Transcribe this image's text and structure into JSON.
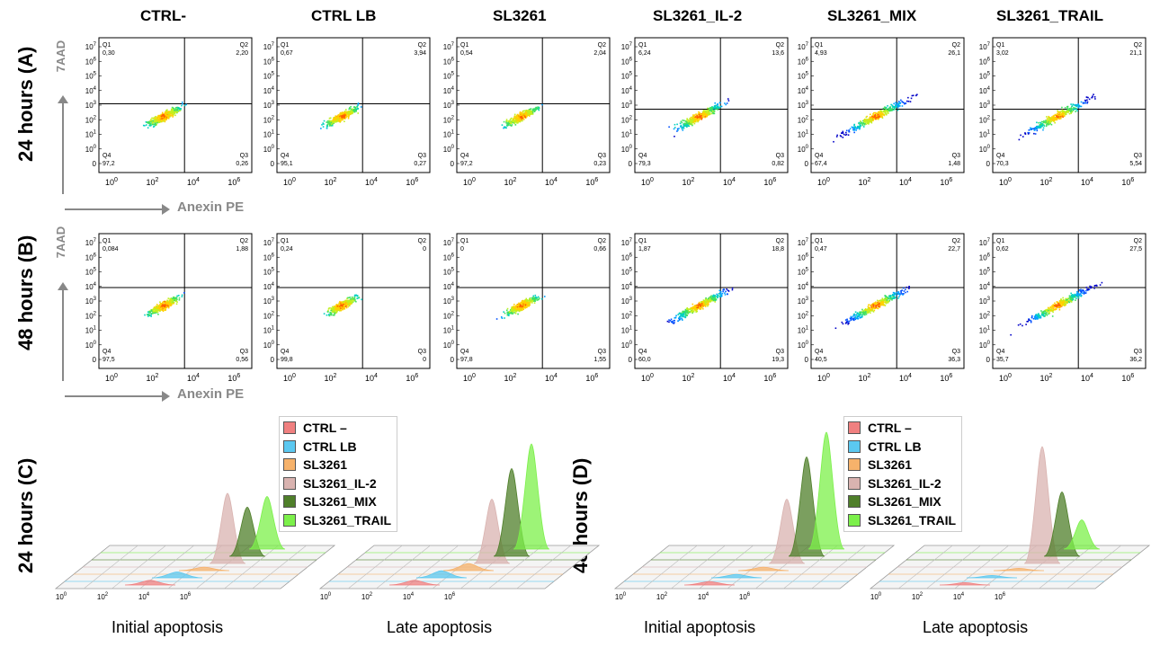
{
  "columns": [
    "CTRL-",
    "CTRL LB",
    "SL3261",
    "SL3261_IL-2",
    "SL3261_MIX",
    "SL3261_TRAIL"
  ],
  "row_labels": [
    "24 hours (A)",
    "48 hours (B)",
    "24 hours (C)",
    "48 hours (D)"
  ],
  "axis": {
    "y": "7AAD",
    "x": "Anexin PE"
  },
  "tick_labels": [
    "0",
    "10",
    "10",
    "10",
    "10",
    "10",
    "10",
    "10",
    "10"
  ],
  "tick_exponents": [
    "",
    "0",
    "1",
    "2",
    "3",
    "4",
    "5",
    "6",
    "7"
  ],
  "quadrant_names": [
    "Q1",
    "Q2",
    "Q3",
    "Q4"
  ],
  "colors": {
    "CTRL –": "#f08080",
    "CTRL LB": "#5bc8f0",
    "SL3261": "#f6b26b",
    "SL3261_IL-2": "#d9b3b0",
    "SL3261_MIX": "#4f7f2a",
    "SL3261_TRAIL": "#7cf04a"
  },
  "chart_data": [
    {
      "type": "scatter",
      "title": "24 hours (A)",
      "xlabel": "Anexin PE",
      "ylabel": "7AAD",
      "x_scale": "log",
      "y_scale": "log",
      "panels": [
        {
          "name": "CTRL-",
          "q1": "0,30",
          "q2": "2,20",
          "q3": "0,26",
          "q4": "97,2"
        },
        {
          "name": "CTRL LB",
          "q1": "0,67",
          "q2": "3,94",
          "q3": "0,27",
          "q4": "95,1"
        },
        {
          "name": "SL3261",
          "q1": "0,54",
          "q2": "2,04",
          "q3": "0,23",
          "q4": "97,2"
        },
        {
          "name": "SL3261_IL-2",
          "q1": "6,24",
          "q2": "13,6",
          "q3": "0,82",
          "q4": "79,3"
        },
        {
          "name": "SL3261_MIX",
          "q1": "4,93",
          "q2": "26,1",
          "q3": "1,48",
          "q4": "67,4"
        },
        {
          "name": "SL3261_TRAIL",
          "q1": "3,02",
          "q2": "21,1",
          "q3": "5,54",
          "q4": "70,3"
        }
      ]
    },
    {
      "type": "scatter",
      "title": "48 hours (B)",
      "xlabel": "Anexin PE",
      "ylabel": "7AAD",
      "x_scale": "log",
      "y_scale": "log",
      "panels": [
        {
          "name": "CTRL-",
          "q1": "0,084",
          "q2": "1,88",
          "q3": "0,56",
          "q4": "97,5"
        },
        {
          "name": "CTRL LB",
          "q1": "0,24",
          "q2": "0",
          "q3": "0",
          "q4": "99,8"
        },
        {
          "name": "SL3261",
          "q1": "0",
          "q2": "0,66",
          "q3": "1,55",
          "q4": "97,8"
        },
        {
          "name": "SL3261_IL-2",
          "q1": "1,87",
          "q2": "18,8",
          "q3": "19,3",
          "q4": "60,0"
        },
        {
          "name": "SL3261_MIX",
          "q1": "0,47",
          "q2": "22,7",
          "q3": "36,3",
          "q4": "40,5"
        },
        {
          "name": "SL3261_TRAIL",
          "q1": "0,62",
          "q2": "27,5",
          "q3": "36,2",
          "q4": "35,7"
        }
      ]
    },
    {
      "type": "area",
      "title": "24 hours (C)",
      "style": "3d-histogram-overlay",
      "legend": [
        "CTRL –",
        "CTRL LB",
        "SL3261",
        "SL3261_IL-2",
        "SL3261_MIX",
        "SL3261_TRAIL"
      ],
      "legend_position": "top-right",
      "x_scale": "log",
      "x_ticks": [
        "10",
        "10",
        "10",
        "10"
      ],
      "x_tick_exponents": [
        "0",
        "2",
        "4",
        "6"
      ],
      "panels": [
        {
          "xlabel": "Initial apoptosis",
          "peak_heights": [
            0.04,
            0.05,
            0.03,
            0.6,
            0.42,
            0.45
          ]
        },
        {
          "xlabel": "Late apoptosis",
          "peak_heights": [
            0.04,
            0.06,
            0.06,
            0.55,
            0.75,
            0.9
          ]
        }
      ]
    },
    {
      "type": "area",
      "title": "48 hours (D)",
      "style": "3d-histogram-overlay",
      "legend": [
        "CTRL –",
        "CTRL LB",
        "SL3261",
        "SL3261_IL-2",
        "SL3261_MIX",
        "SL3261_TRAIL"
      ],
      "legend_position": "top-right",
      "x_scale": "log",
      "x_ticks": [
        "10",
        "10",
        "10",
        "10"
      ],
      "x_tick_exponents": [
        "0",
        "2",
        "4",
        "6"
      ],
      "panels": [
        {
          "xlabel": "Initial apoptosis",
          "peak_heights": [
            0.03,
            0.03,
            0.03,
            0.55,
            0.85,
            1.0
          ]
        },
        {
          "xlabel": "Late apoptosis",
          "peak_heights": [
            0.02,
            0.02,
            0.02,
            1.0,
            0.55,
            0.25
          ]
        }
      ]
    }
  ]
}
